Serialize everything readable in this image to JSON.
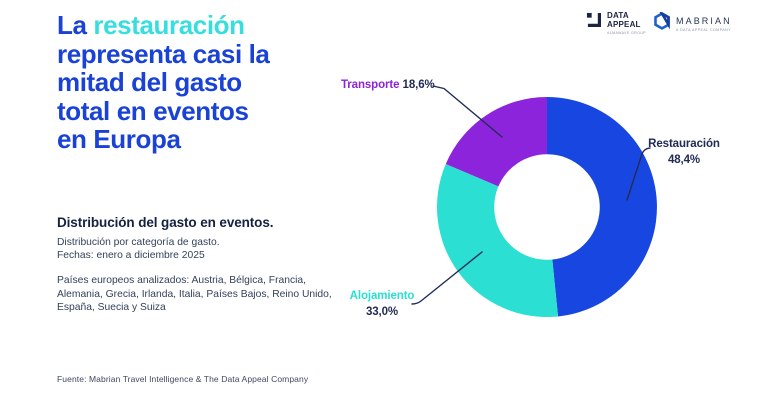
{
  "headline": {
    "l1_prefix": "La ",
    "l1_highlight": "restauración",
    "l2": "representa casi la",
    "l3": "mitad del gasto",
    "l4": "total en eventos",
    "l5": "en Europa"
  },
  "info": {
    "title": "Distribución del gasto en eventos.",
    "subtitle1": "Distribución por categoría de gasto.",
    "subtitle2": "Fechas: enero a diciembre 2025",
    "countries_line1": "Países europeos analizados: Austria, Bélgica, Francia,",
    "countries_line2": "Alemania, Grecia, Irlanda, Italia, Países Bajos, Reino Unido,",
    "countries_line3": "España, Suecia y Suiza"
  },
  "footer": {
    "source": "Fuente: Mabrian Travel Intelligence & The Data Appeal Company"
  },
  "logos": {
    "data_appeal": {
      "line1": "DATA",
      "line2": "APPEAL",
      "sub": "ALMAWAVE GROUP"
    },
    "mabrian": {
      "name": "MABRIAN",
      "sub": "A DATA APPEAL COMPANY"
    }
  },
  "colors": {
    "headline_blue": "#1a43d6",
    "headline_teal": "#38dedd",
    "label_navy": "#212b55",
    "restauracion_blue": "#1747E0",
    "alojamiento_teal": "#2BDFD3",
    "transporte_purple": "#8C24DB"
  },
  "chart_data": {
    "type": "pie",
    "subtype": "donut",
    "title": "Distribución del gasto en eventos.",
    "unit": "%",
    "start_angle": "top",
    "direction": "clockwise",
    "inner_radius_ratio": 0.48,
    "slices": [
      {
        "label": "Restauración",
        "value": 48.4,
        "value_display": "48,4%",
        "color": "#1747E0"
      },
      {
        "label": "Alojamiento",
        "value": 33.0,
        "value_display": "33,0%",
        "color": "#2BDFD3"
      },
      {
        "label": "Transporte",
        "value": 18.6,
        "value_display": "18,6%",
        "color": "#8C24DB"
      }
    ]
  }
}
